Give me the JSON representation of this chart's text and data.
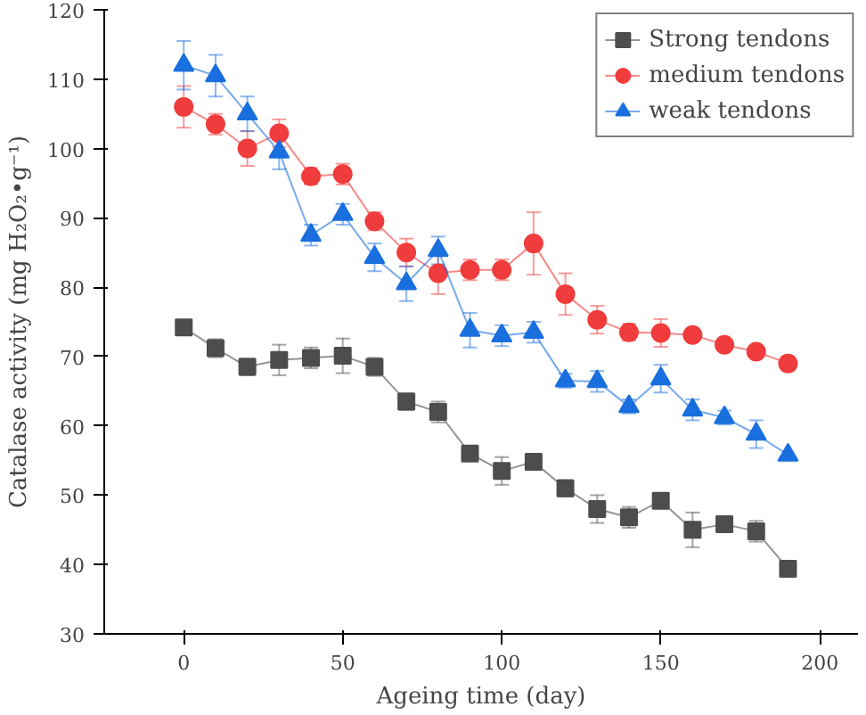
{
  "chart_data": {
    "type": "line",
    "xlabel": "Ageing time (day)",
    "ylabel": "Catalase activity (mg H₂O₂•g⁻¹)",
    "x": [
      0,
      10,
      20,
      30,
      40,
      50,
      60,
      70,
      80,
      90,
      100,
      110,
      120,
      130,
      140,
      150,
      160,
      170,
      180,
      190
    ],
    "xlim": [
      -25,
      212
    ],
    "xticks": [
      0,
      50,
      100,
      150,
      200
    ],
    "ylim": [
      30,
      120
    ],
    "yticks": [
      30,
      40,
      50,
      60,
      70,
      80,
      90,
      100,
      110,
      120
    ],
    "grid": false,
    "legend": "top right",
    "line_style": "solid",
    "series": [
      {
        "name": "Strong tendons",
        "color": "#4d4d4d",
        "marker": "square",
        "values": [
          74.2,
          71.2,
          68.5,
          69.5,
          69.8,
          70.1,
          68.5,
          63.5,
          62,
          56,
          53.5,
          54.8,
          51,
          48,
          46.8,
          49.2,
          45,
          45.8,
          44.8,
          39.4
        ],
        "errors": [
          1,
          1.3,
          1.2,
          2.2,
          1.5,
          2.5,
          1.3,
          1.2,
          1.5,
          1,
          2,
          1,
          1.2,
          2,
          1.5,
          1,
          2.5,
          null,
          1.5,
          0.8
        ]
      },
      {
        "name": "medium tendons",
        "color": "#f03c3c",
        "marker": "circle",
        "values": [
          106,
          103.5,
          100,
          102.2,
          96,
          96.3,
          89.5,
          85,
          82,
          82.5,
          82.5,
          86.3,
          79,
          75.3,
          73.5,
          73.4,
          73.1,
          71.7,
          70.7,
          69
        ],
        "errors": [
          3,
          1.5,
          2.5,
          2,
          1.2,
          1.5,
          1.3,
          2,
          3,
          1.5,
          1.5,
          4.5,
          3,
          2,
          1.2,
          2,
          null,
          null,
          null,
          1
        ]
      },
      {
        "name": "weak tendons",
        "color": "#1a6fdf",
        "marker": "triangle",
        "values": [
          112,
          110.5,
          105,
          99.5,
          87.5,
          90.5,
          84.3,
          80.5,
          85.3,
          73.8,
          73,
          73.5,
          66.5,
          66.4,
          62.8,
          66.8,
          62.3,
          61.2,
          58.8,
          55.8
        ],
        "errors": [
          3.5,
          3,
          2.5,
          2.5,
          1.5,
          1.5,
          2,
          2.5,
          2,
          2.5,
          1.5,
          1.5,
          1,
          1.5,
          1,
          2,
          1.5,
          1,
          2,
          null
        ]
      }
    ]
  }
}
